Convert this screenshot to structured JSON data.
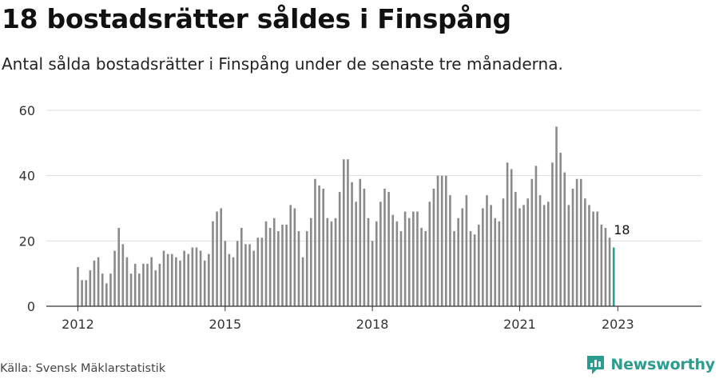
{
  "header": {
    "title": "18 bostadsrätter såldes i Finspång",
    "subtitle": "Antal sålda bostadsrätter i Finspång under de senaste tre månaderna."
  },
  "footer": {
    "source": "Källa: Svensk Mäklarstatistik",
    "brand": "Newsworthy",
    "brand_icon": "newsworthy-logo-icon"
  },
  "colors": {
    "bar": "#8a8a8a",
    "highlight": "#2a9d8f",
    "grid": "#dddddd",
    "axis": "#333333",
    "text": "#111111"
  },
  "chart_data": {
    "type": "bar",
    "title": "18 bostadsrätter såldes i Finspång",
    "subtitle": "Antal sålda bostadsrätter i Finspång under de senaste tre månaderna.",
    "xlabel": "",
    "ylabel": "",
    "ylim": [
      0,
      60
    ],
    "yticks": [
      0,
      20,
      40,
      60
    ],
    "xticks": [
      "2012",
      "2015",
      "2018",
      "2021",
      "2023"
    ],
    "grid": true,
    "legend": "none",
    "start": "2012-01",
    "frequency": "monthly",
    "values": [
      12,
      8,
      8,
      11,
      14,
      15,
      10,
      7,
      10,
      17,
      24,
      19,
      15,
      10,
      13,
      10,
      13,
      13,
      15,
      11,
      13,
      17,
      16,
      16,
      15,
      14,
      17,
      16,
      18,
      18,
      17,
      14,
      16,
      26,
      29,
      30,
      20,
      16,
      15,
      20,
      24,
      19,
      19,
      17,
      21,
      21,
      26,
      24,
      27,
      23,
      25,
      25,
      31,
      30,
      23,
      15,
      23,
      27,
      39,
      37,
      36,
      27,
      26,
      27,
      35,
      45,
      45,
      38,
      32,
      39,
      36,
      27,
      20,
      26,
      32,
      36,
      35,
      28,
      26,
      23,
      29,
      27,
      29,
      29,
      24,
      23,
      32,
      36,
      40,
      40,
      40,
      34,
      23,
      27,
      30,
      34,
      23,
      22,
      25,
      30,
      34,
      31,
      27,
      26,
      33,
      44,
      42,
      35,
      30,
      31,
      33,
      39,
      43,
      34,
      31,
      32,
      44,
      55,
      47,
      41,
      31,
      36,
      39,
      39,
      33,
      31,
      29,
      29,
      25,
      24,
      21,
      18
    ],
    "highlight_last": true,
    "annotation": "18"
  }
}
